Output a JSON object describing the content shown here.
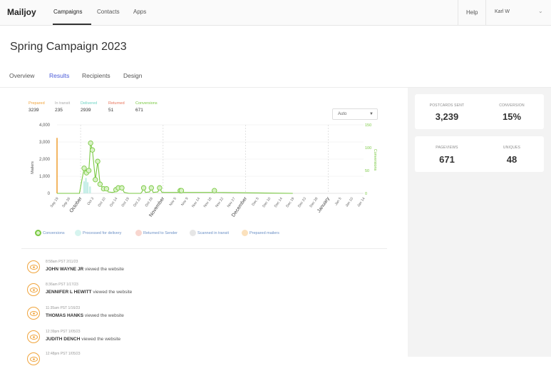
{
  "app": {
    "logo": "Mailjoy",
    "nav": [
      "Campaigns",
      "Contacts",
      "Apps"
    ],
    "help": "Help",
    "user": "Karl W"
  },
  "page": {
    "title": "Spring Campaign 2023",
    "tabs": [
      "Overview",
      "Results",
      "Recipients",
      "Design"
    ],
    "active_tab": "Results"
  },
  "summary": [
    {
      "label": "Prepared",
      "value": "3239",
      "color": "#f0a43c"
    },
    {
      "label": "In transit",
      "value": "235",
      "color": "#aaaaaa"
    },
    {
      "label": "Delivered",
      "value": "2939",
      "color": "#6cd4c4"
    },
    {
      "label": "Returned",
      "value": "51",
      "color": "#e8735a"
    },
    {
      "label": "Conversions",
      "value": "671",
      "color": "#7ac943"
    }
  ],
  "dropdown": {
    "value": "Auto"
  },
  "stats": {
    "postcards_sent_label": "POSTCARDS SENT",
    "postcards_sent": "3,239",
    "conversion_label": "CONVERSION",
    "conversion": "15%",
    "pageviews_label": "PAGEVIEWS",
    "pageviews": "671",
    "uniques_label": "UNIQUES",
    "uniques": "48"
  },
  "chart_data": {
    "type": "line",
    "ylabel": "Mailers",
    "y2label": "Conversions",
    "ylim": [
      0,
      4000
    ],
    "y2lim": [
      0,
      150
    ],
    "y_ticks": [
      "0",
      "1,000",
      "2,000",
      "3,000",
      "4,000"
    ],
    "y2_ticks": [
      "0",
      "50",
      "100",
      "150"
    ],
    "x_ticks": [
      "Sep 19",
      "Sep 26",
      "October",
      "Oct 3",
      "Oct 10",
      "Oct 14",
      "Oct 19",
      "Oct 23",
      "Oct 28",
      "November",
      "Nov 5",
      "Nov 9",
      "Nov 14",
      "Nov 18",
      "Nov 22",
      "Nov 27",
      "December",
      "Dec 5",
      "Dec 10",
      "Dec 14",
      "Dec 19",
      "Dec 23",
      "Dec 28",
      "January",
      "Jan 5",
      "Jan 10",
      "Jan 14"
    ],
    "month_ticks": [
      "October",
      "November",
      "December",
      "January"
    ],
    "series": [
      {
        "name": "Prepared mailers",
        "color": "#f0a43c",
        "values": [
          {
            "x": 0.0,
            "y": 3239
          }
        ]
      },
      {
        "name": "Conversions",
        "color": "#7ac943",
        "points": [
          [
            0.0,
            0
          ],
          [
            1.9,
            0
          ],
          [
            2.3,
            55
          ],
          [
            2.5,
            45
          ],
          [
            2.7,
            50
          ],
          [
            2.85,
            110
          ],
          [
            3.0,
            95
          ],
          [
            3.25,
            30
          ],
          [
            3.45,
            70
          ],
          [
            3.65,
            20
          ],
          [
            3.95,
            10
          ],
          [
            4.2,
            10
          ],
          [
            4.35,
            3
          ],
          [
            4.7,
            2
          ],
          [
            4.9,
            3
          ],
          [
            5.0,
            8
          ],
          [
            5.2,
            12
          ],
          [
            5.5,
            12
          ],
          [
            5.7,
            2
          ],
          [
            6.1,
            0
          ],
          [
            7.1,
            0
          ],
          [
            7.2,
            3
          ],
          [
            7.35,
            12
          ],
          [
            7.5,
            2
          ],
          [
            7.85,
            3
          ],
          [
            8.0,
            12
          ],
          [
            8.15,
            2
          ],
          [
            8.55,
            3
          ],
          [
            8.7,
            12
          ],
          [
            8.9,
            2
          ],
          [
            10.3,
            2
          ],
          [
            10.45,
            6
          ],
          [
            10.55,
            6
          ],
          [
            10.7,
            2
          ],
          [
            13.2,
            2
          ],
          [
            13.35,
            6
          ],
          [
            13.5,
            2
          ],
          [
            20,
            0
          ]
        ]
      }
    ]
  },
  "legend_bottom": [
    {
      "label": "Conversions",
      "color": "#7ac943"
    },
    {
      "label": "Processed for delivery",
      "color": "#6cd4c4"
    },
    {
      "label": "Returned to Sender",
      "color": "#e8735a"
    },
    {
      "label": "Scanned in transit",
      "color": "#aaaaaa"
    },
    {
      "label": "Prepared mailers",
      "color": "#f0a43c"
    }
  ],
  "activity": [
    {
      "time": "8:58am PST 2/11/23",
      "name": "JOHN WAYNE JR",
      "action": "viewed the website"
    },
    {
      "time": "8:36am PST 1/17/23",
      "name": "JENNIFER L HEWITT",
      "action": "viewed the website"
    },
    {
      "time": "11:35am PST 1/16/23",
      "name": "THOMAS HANKS",
      "action": "viewed the website"
    },
    {
      "time": "12:39pm PST 1/05/23",
      "name": "JUDITH DENCH",
      "action": "viewed the website"
    },
    {
      "time": "12:48pm PST 1/05/23",
      "name": "",
      "action": ""
    }
  ]
}
